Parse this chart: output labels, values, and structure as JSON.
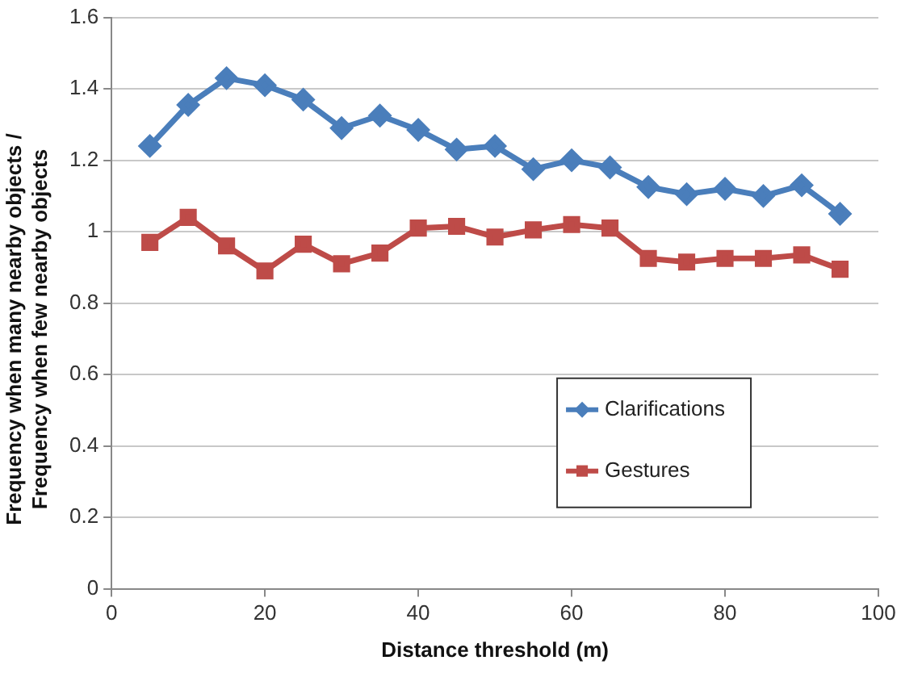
{
  "chart_data": {
    "type": "line",
    "xlabel": "Distance threshold (m)",
    "ylabel": "Frequency when many nearby objects / Frequency when few nearby objects",
    "x": [
      5,
      10,
      15,
      20,
      25,
      30,
      35,
      40,
      45,
      50,
      55,
      60,
      65,
      70,
      75,
      80,
      85,
      90,
      95
    ],
    "series": [
      {
        "name": "Clarifications",
        "color": "#4a7ebb",
        "marker": "diamond",
        "values": [
          1.24,
          1.355,
          1.43,
          1.41,
          1.37,
          1.29,
          1.325,
          1.285,
          1.23,
          1.24,
          1.175,
          1.2,
          1.18,
          1.125,
          1.105,
          1.12,
          1.1,
          1.13,
          1.05
        ]
      },
      {
        "name": "Gestures",
        "color": "#be4b48",
        "marker": "square",
        "values": [
          0.97,
          1.04,
          0.96,
          0.89,
          0.965,
          0.91,
          0.94,
          1.01,
          1.015,
          0.985,
          1.005,
          1.02,
          1.01,
          0.925,
          0.915,
          0.925,
          0.925,
          0.935,
          0.895
        ]
      }
    ],
    "xlim": [
      0,
      100
    ],
    "xticks": [
      0,
      20,
      40,
      60,
      80,
      100
    ],
    "ylim": [
      0,
      1.6
    ],
    "yticks": [
      0,
      0.2,
      0.4,
      0.6,
      0.8,
      1,
      1.2,
      1.4,
      1.6
    ],
    "grid": "y",
    "legend": "right"
  }
}
